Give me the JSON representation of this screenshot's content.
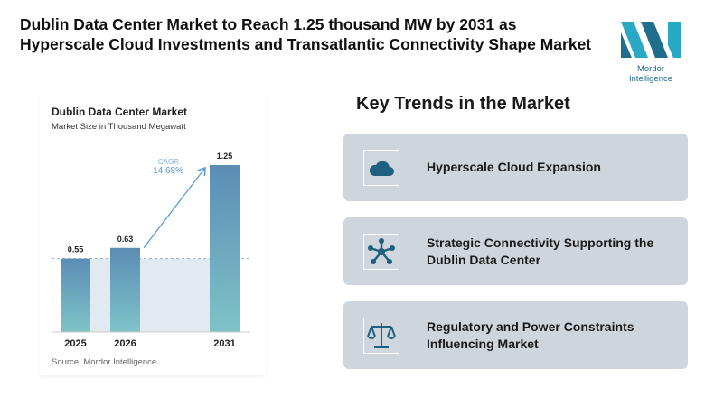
{
  "header": {
    "title": "Dublin Data Center Market to Reach 1.25 thousand MW by 2031 as Hyperscale Cloud Investments and Transatlantic Connectivity Shape Market",
    "logo_text": "Mordor Intelligence"
  },
  "chart_data": {
    "type": "bar",
    "title": "Dublin Data Center Market",
    "subtitle": "Market Size in Thousand Megawatt",
    "categories": [
      "2025",
      "2026",
      "2031"
    ],
    "values": [
      0.55,
      0.63,
      1.25
    ],
    "value_labels": [
      "0.55",
      "0.63",
      "1.25"
    ],
    "cagr_label": "CAGR",
    "cagr_value": "14.68%",
    "source": "Source: Mordor Intelligence",
    "colors": {
      "bar_top": "#5b8db5",
      "bar_bottom": "#7fc3c8",
      "accent": "#5b9bd5"
    }
  },
  "trends": {
    "heading": "Key Trends in the Market",
    "items": [
      {
        "label": "Hyperscale Cloud Expansion",
        "icon": "cloud-icon"
      },
      {
        "label": "Strategic Connectivity Supporting the Dublin Data Center",
        "icon": "network-icon"
      },
      {
        "label": "Regulatory and Power Constraints Influencing Market",
        "icon": "scale-icon"
      }
    ]
  }
}
